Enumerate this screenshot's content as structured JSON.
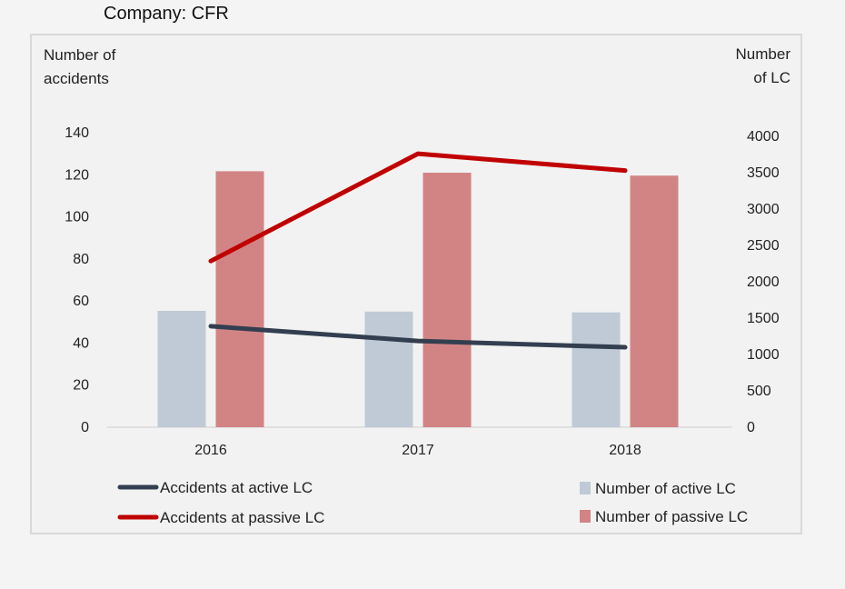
{
  "title": "Company: CFR",
  "chart_data": {
    "type": "bar",
    "categories": [
      "2016",
      "2017",
      "2018"
    ],
    "series": [
      {
        "name": "Number of active LC",
        "kind": "bar",
        "axis": "right",
        "color": "#bfcad6",
        "values": [
          1600,
          1590,
          1580
        ]
      },
      {
        "name": "Number of passive LC",
        "kind": "bar",
        "axis": "right",
        "color": "#d28484",
        "values": [
          3520,
          3500,
          3460
        ]
      },
      {
        "name": "Accidents at active LC",
        "kind": "line",
        "axis": "left",
        "color": "#333f50",
        "values": [
          48,
          41,
          38
        ]
      },
      {
        "name": "Accidents at passive LC",
        "kind": "line",
        "axis": "left",
        "color": "#c00000",
        "values": [
          79,
          130,
          122
        ]
      }
    ],
    "ylabel_left": [
      "Number of",
      "accidents"
    ],
    "ylabel_right": [
      "Number",
      "of LC"
    ],
    "ylim_left": [
      0,
      140
    ],
    "ylim_right": [
      0,
      4000
    ],
    "yticks_left": [
      "0",
      "20",
      "40",
      "60",
      "80",
      "100",
      "120",
      "140"
    ],
    "yticks_right": [
      "0",
      "500",
      "1000",
      "1500",
      "2000",
      "2500",
      "3000",
      "3500",
      "4000"
    ],
    "grid": false,
    "legend": {
      "Accidents at active LC": "bottom-left",
      "Accidents at passive LC": "bottom-left",
      "Number of active LC": "bottom-right",
      "Number of passive LC": "bottom-right"
    }
  }
}
